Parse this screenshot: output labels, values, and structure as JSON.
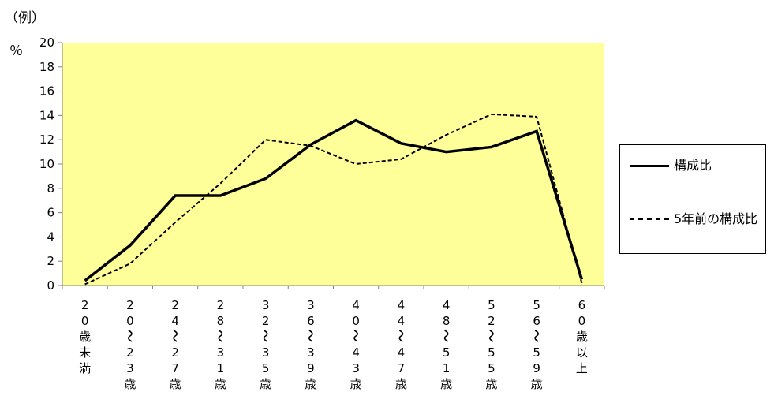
{
  "unit_label": "（例）",
  "percent_label": "％",
  "chart_data": {
    "type": "line",
    "ylim": [
      0,
      20
    ],
    "y_ticks": [
      "0",
      "2",
      "4",
      "6",
      "8",
      "10",
      "12",
      "14",
      "16",
      "18",
      "20"
    ],
    "categories": [
      [
        "2",
        "0",
        "歳",
        "未",
        "満"
      ],
      [
        "2",
        "0",
        "〜",
        "2",
        "3",
        "歳"
      ],
      [
        "2",
        "4",
        "〜",
        "2",
        "7",
        "歳"
      ],
      [
        "2",
        "8",
        "〜",
        "3",
        "1",
        "歳"
      ],
      [
        "3",
        "2",
        "〜",
        "3",
        "5",
        "歳"
      ],
      [
        "3",
        "6",
        "〜",
        "3",
        "9",
        "歳"
      ],
      [
        "4",
        "0",
        "〜",
        "4",
        "3",
        "歳"
      ],
      [
        "4",
        "4",
        "〜",
        "4",
        "7",
        "歳"
      ],
      [
        "4",
        "8",
        "〜",
        "5",
        "1",
        "歳"
      ],
      [
        "5",
        "2",
        "〜",
        "5",
        "5",
        "歳"
      ],
      [
        "5",
        "6",
        "〜",
        "5",
        "9",
        "歳"
      ],
      [
        "6",
        "0",
        "歳",
        "以",
        "上"
      ]
    ],
    "series": [
      {
        "name": "構成比",
        "style": "solid",
        "values": [
          0.4,
          3.3,
          7.4,
          7.4,
          8.8,
          11.6,
          13.6,
          11.7,
          11.0,
          11.4,
          12.7,
          0.5
        ]
      },
      {
        "name": "5年前の構成比",
        "style": "dashed",
        "values": [
          0.1,
          1.8,
          5.2,
          8.4,
          12.0,
          11.5,
          10.0,
          10.4,
          12.4,
          14.1,
          13.9,
          0.2
        ]
      }
    ],
    "plot_background": "#ffff99",
    "grid": false,
    "legend_position": "right"
  }
}
